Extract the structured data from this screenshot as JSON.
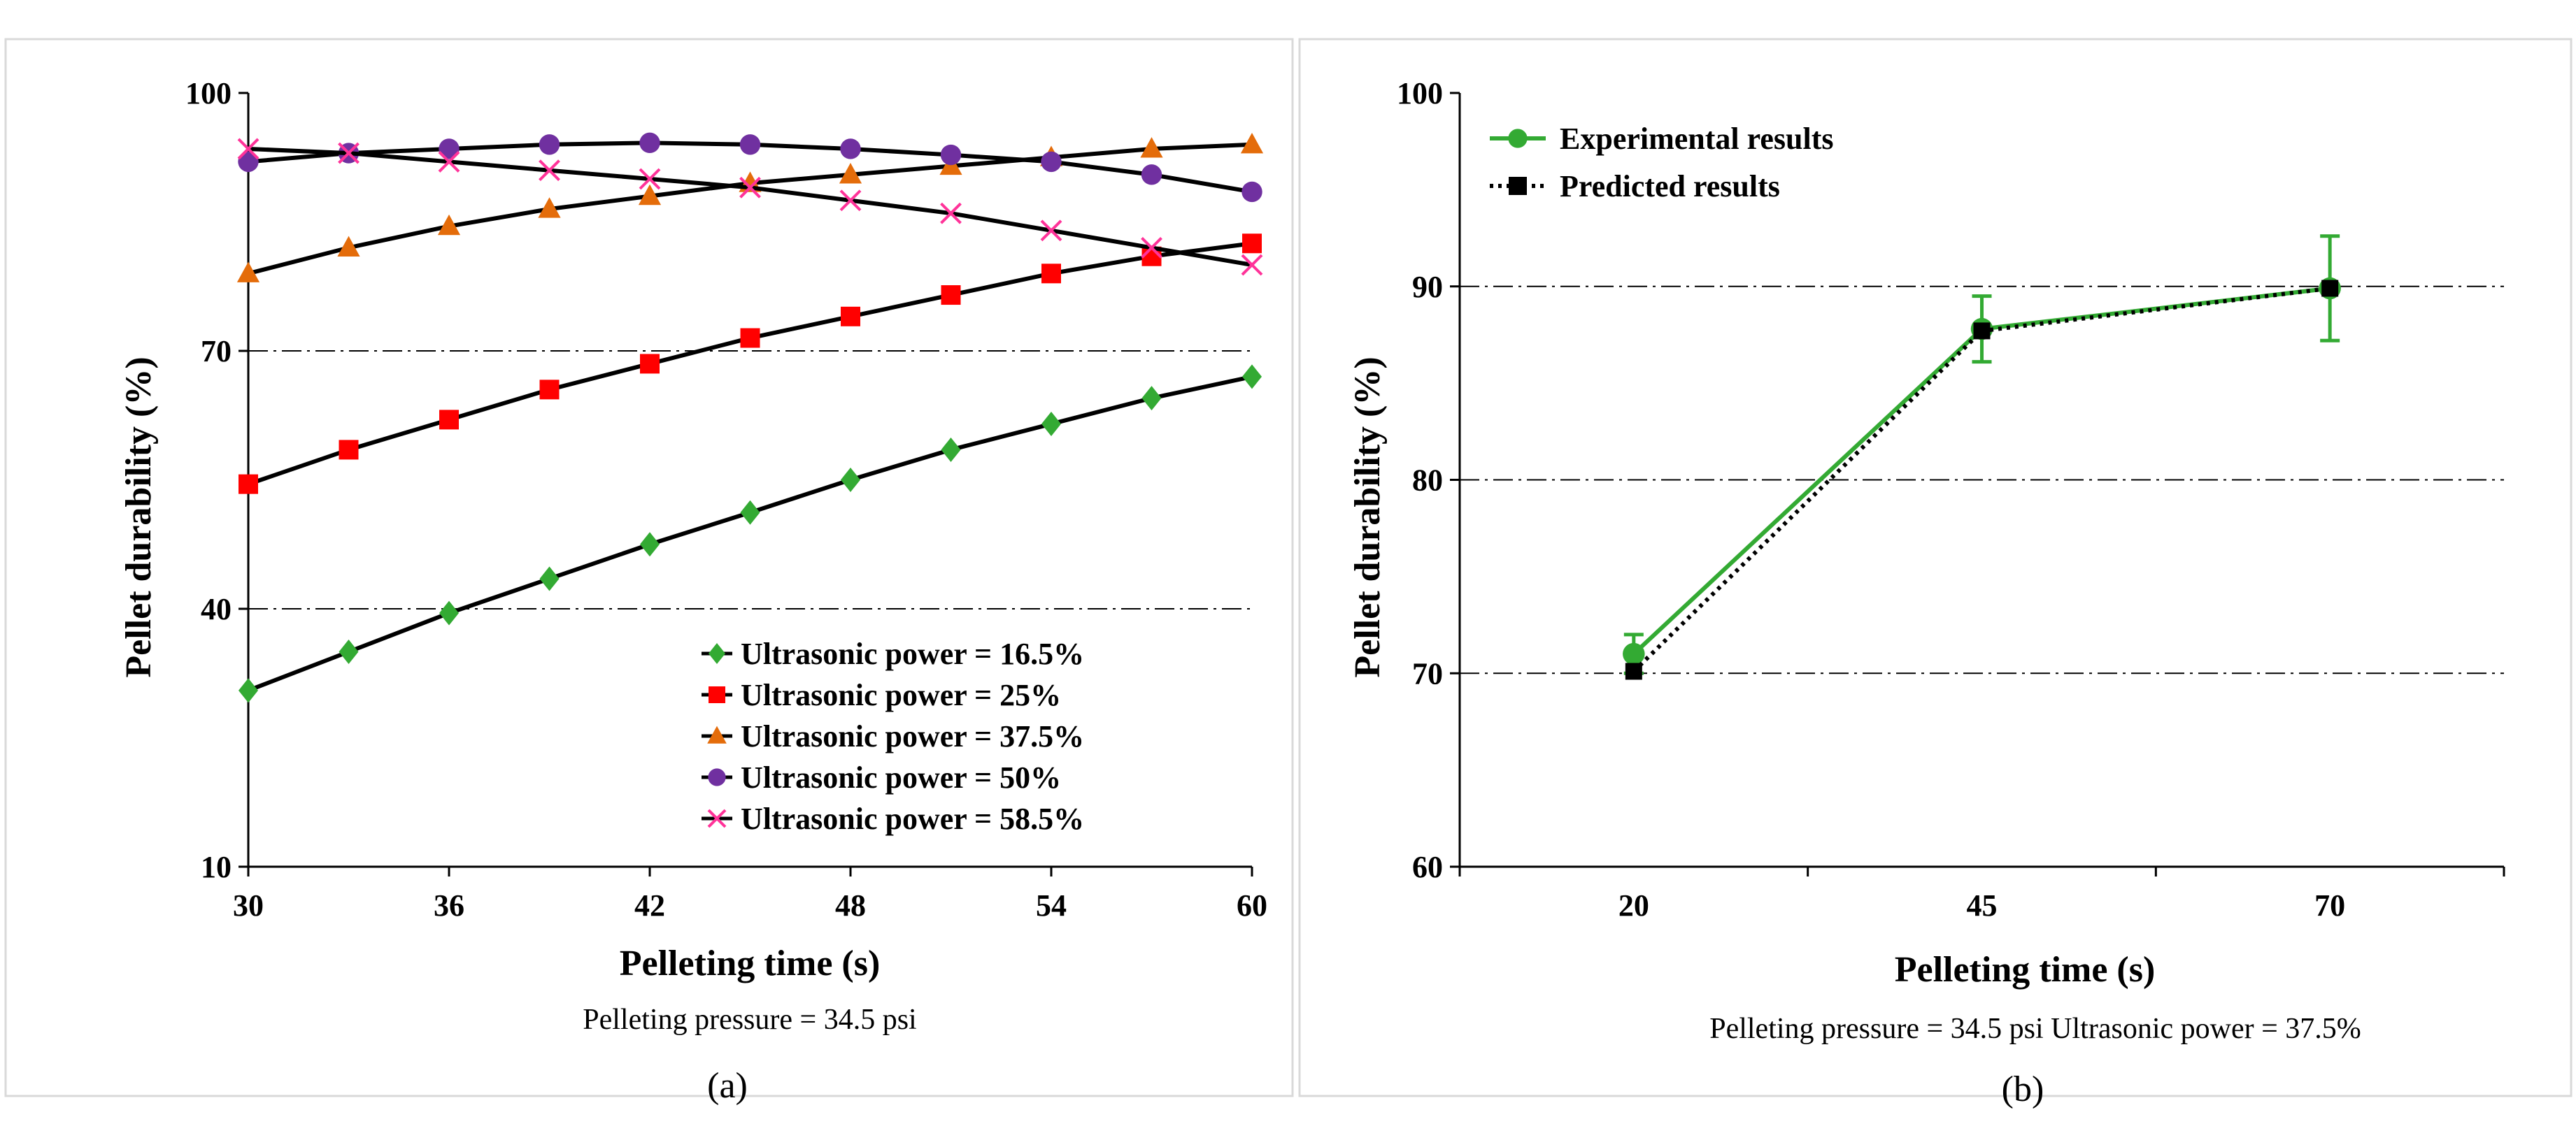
{
  "chart_data": [
    {
      "type": "line",
      "panel_label": "(a)",
      "caption": "Pelleting pressure = 34.5 psi",
      "xlabel": "Pelleting time (s)",
      "ylabel": "Pellet durability (%)",
      "xlim": [
        30,
        60
      ],
      "ylim": [
        10,
        100
      ],
      "x_ticks": [
        30,
        36,
        42,
        48,
        54,
        60
      ],
      "y_ticks": [
        10,
        40,
        70,
        100
      ],
      "grid": "horizontal dash-dot at 40 and 70",
      "legend_position": "bottom-right",
      "x": [
        30,
        33,
        36,
        39,
        42,
        45,
        48,
        51,
        54,
        57,
        60
      ],
      "series": [
        {
          "name": "Ultrasonic power = 16.5%",
          "color": "#33aa33",
          "marker": "diamond",
          "values": [
            30.5,
            35,
            39.5,
            43.5,
            47.5,
            51.2,
            55,
            58.5,
            61.5,
            64.5,
            67
          ]
        },
        {
          "name": "Ultrasonic power = 25%",
          "color": "#ff0000",
          "marker": "square",
          "values": [
            54.5,
            58.5,
            62,
            65.5,
            68.5,
            71.5,
            74,
            76.5,
            79,
            81,
            82.5
          ]
        },
        {
          "name": "Ultrasonic power = 37.5%",
          "color": "#e46c0a",
          "marker": "triangle",
          "values": [
            79,
            82,
            84.5,
            86.5,
            88,
            89.5,
            90.5,
            91.5,
            92.5,
            93.5,
            94
          ]
        },
        {
          "name": "Ultrasonic power = 50%",
          "color": "#7030a0",
          "marker": "circle",
          "values": [
            92,
            93,
            93.5,
            94,
            94.2,
            94,
            93.5,
            92.8,
            92,
            90.5,
            88.5
          ]
        },
        {
          "name": "Ultrasonic power = 58.5%",
          "color": "#ff3399",
          "marker": "x",
          "values": [
            93.5,
            93,
            92,
            91,
            90,
            89,
            87.5,
            86,
            84,
            82,
            80
          ]
        }
      ]
    },
    {
      "type": "line",
      "panel_label": "(b)",
      "caption": "Pelleting pressure = 34.5 psi  Ultrasonic power = 37.5%",
      "xlabel": "Pelleting time (s)",
      "ylabel": "Pellet durability (%)",
      "categories": [
        "20",
        "45",
        "70"
      ],
      "ylim": [
        60,
        100
      ],
      "y_ticks": [
        60,
        70,
        80,
        90,
        100
      ],
      "grid": "horizontal dash-dot at 70, 80 and 90",
      "legend_position": "top-left",
      "series": [
        {
          "name": "Experimental results",
          "color": "#33aa33",
          "marker": "circle",
          "values": [
            71,
            87.8,
            89.9
          ],
          "error": [
            1,
            1.7,
            2.7
          ]
        },
        {
          "name": "Predicted results",
          "color": "#000000",
          "marker": "square",
          "line": "dotted",
          "values": [
            70.1,
            87.7,
            89.9
          ]
        }
      ]
    }
  ]
}
